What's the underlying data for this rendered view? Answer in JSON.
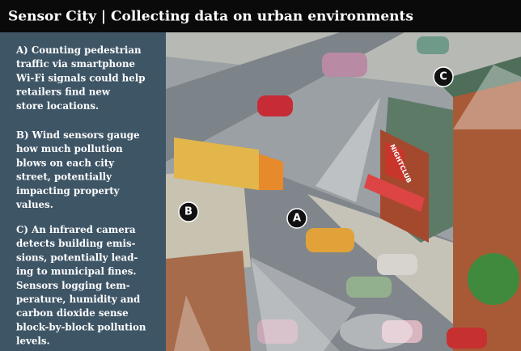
{
  "header": {
    "title": "Sensor City | Collecting data on urban environments"
  },
  "panel": {
    "paragraphs": [
      [
        "A) Counting pedestrian",
        "traffic via smartphone",
        "Wi-Fi signals could help",
        "retailers find new",
        "store locations."
      ],
      [
        "B) Wind sensors gauge",
        "how much pollution",
        "blows on each city",
        "street, potentially",
        "impacting property",
        "values."
      ],
      [
        "C) An infrared camera",
        "detects building emis-",
        "sions, potentially lead-",
        "ing to municipal fines.",
        "Sensors logging tem-",
        "perature, humidity and",
        "carbon dioxide sense",
        "block-by-block pollution",
        "levels."
      ]
    ]
  },
  "illustration": {
    "markers": [
      "A",
      "B",
      "C"
    ],
    "sign": "NIGHTCLUB"
  }
}
